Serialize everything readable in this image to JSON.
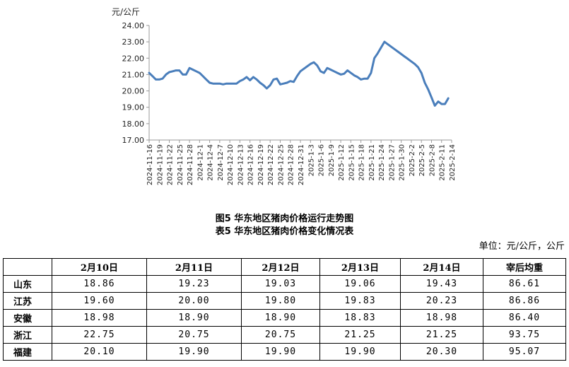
{
  "chart_data": {
    "type": "line",
    "unit": "元/公斤",
    "ylim": [
      17.0,
      24.0
    ],
    "yticks": [
      "24.00",
      "23.00",
      "22.00",
      "21.00",
      "20.00",
      "19.00",
      "18.00",
      "17.00"
    ],
    "x_tick_labels": [
      "2024-11-16",
      "2024-11-19",
      "2024-11-22",
      "2024-11-25",
      "2024-11-28",
      "2024-12-1",
      "2024-12-4",
      "2024-12-7",
      "2024-12-10",
      "2024-12-13",
      "2024-12-16",
      "2024-12-19",
      "2024-12-22",
      "2024-12-25",
      "2024-12-28",
      "2024-12-31",
      "2025-1-3",
      "2025-1-6",
      "2025-1-9",
      "2025-1-12",
      "2025-1-15",
      "2025-1-18",
      "2025-1-21",
      "2025-1-24",
      "2025-1-27",
      "2025-1-30",
      "2025-2-2",
      "2025-2-5",
      "2025-2-8",
      "2025-2-11",
      "2025-2-14"
    ],
    "series": [
      {
        "color": "#4a7ebb",
        "points": [
          [
            "2024-11-16",
            21.1
          ],
          [
            "2024-11-17",
            20.9
          ],
          [
            "2024-11-18",
            20.7
          ],
          [
            "2024-11-19",
            20.7
          ],
          [
            "2024-11-20",
            20.75
          ],
          [
            "2024-11-21",
            21.0
          ],
          [
            "2024-11-22",
            21.15
          ],
          [
            "2024-11-23",
            21.2
          ],
          [
            "2024-11-24",
            21.25
          ],
          [
            "2024-11-25",
            21.25
          ],
          [
            "2024-11-26",
            21.0
          ],
          [
            "2024-11-27",
            21.0
          ],
          [
            "2024-11-28",
            21.4
          ],
          [
            "2024-11-29",
            21.3
          ],
          [
            "2024-11-30",
            21.2
          ],
          [
            "2024-12-1",
            21.1
          ],
          [
            "2024-12-2",
            20.9
          ],
          [
            "2024-12-3",
            20.7
          ],
          [
            "2024-12-4",
            20.5
          ],
          [
            "2024-12-5",
            20.45
          ],
          [
            "2024-12-6",
            20.45
          ],
          [
            "2024-12-7",
            20.45
          ],
          [
            "2024-12-8",
            20.4
          ],
          [
            "2024-12-9",
            20.45
          ],
          [
            "2024-12-10",
            20.45
          ],
          [
            "2024-12-11",
            20.45
          ],
          [
            "2024-12-12",
            20.45
          ],
          [
            "2024-12-13",
            20.6
          ],
          [
            "2024-12-14",
            20.7
          ],
          [
            "2024-12-15",
            20.85
          ],
          [
            "2024-12-16",
            20.65
          ],
          [
            "2024-12-17",
            20.85
          ],
          [
            "2024-12-18",
            20.7
          ],
          [
            "2024-12-19",
            20.5
          ],
          [
            "2024-12-20",
            20.35
          ],
          [
            "2024-12-21",
            20.15
          ],
          [
            "2024-12-22",
            20.35
          ],
          [
            "2024-12-23",
            20.7
          ],
          [
            "2024-12-24",
            20.75
          ],
          [
            "2024-12-25",
            20.4
          ],
          [
            "2024-12-26",
            20.45
          ],
          [
            "2024-12-27",
            20.5
          ],
          [
            "2024-12-28",
            20.6
          ],
          [
            "2024-12-29",
            20.55
          ],
          [
            "2024-12-30",
            20.9
          ],
          [
            "2024-12-31",
            21.2
          ],
          [
            "2025-1-1",
            21.35
          ],
          [
            "2025-1-2",
            21.5
          ],
          [
            "2025-1-3",
            21.65
          ],
          [
            "2025-1-4",
            21.75
          ],
          [
            "2025-1-5",
            21.55
          ],
          [
            "2025-1-6",
            21.2
          ],
          [
            "2025-1-7",
            21.1
          ],
          [
            "2025-1-8",
            21.4
          ],
          [
            "2025-1-9",
            21.3
          ],
          [
            "2025-1-10",
            21.2
          ],
          [
            "2025-1-11",
            21.1
          ],
          [
            "2025-1-12",
            21.0
          ],
          [
            "2025-1-13",
            21.05
          ],
          [
            "2025-1-14",
            21.25
          ],
          [
            "2025-1-15",
            21.1
          ],
          [
            "2025-1-16",
            20.95
          ],
          [
            "2025-1-17",
            20.85
          ],
          [
            "2025-1-18",
            20.7
          ],
          [
            "2025-1-19",
            20.75
          ],
          [
            "2025-1-20",
            20.75
          ],
          [
            "2025-1-21",
            21.1
          ],
          [
            "2025-1-22",
            22.0
          ],
          [
            "2025-1-23",
            22.3
          ],
          [
            "2025-1-24",
            22.65
          ],
          [
            "2025-1-25",
            23.0
          ],
          [
            "2025-1-26",
            22.85
          ],
          [
            "2025-1-27",
            22.7
          ],
          [
            "2025-1-28",
            22.55
          ],
          [
            "2025-1-29",
            22.4
          ],
          [
            "2025-1-30",
            22.25
          ],
          [
            "2025-1-31",
            22.1
          ],
          [
            "2025-2-1",
            21.95
          ],
          [
            "2025-2-2",
            21.8
          ],
          [
            "2025-2-3",
            21.65
          ],
          [
            "2025-2-4",
            21.45
          ],
          [
            "2025-2-5",
            21.1
          ],
          [
            "2025-2-6",
            20.5
          ],
          [
            "2025-2-7",
            20.1
          ],
          [
            "2025-2-8",
            19.6
          ],
          [
            "2025-2-9",
            19.1
          ],
          [
            "2025-2-10",
            19.35
          ],
          [
            "2025-2-11",
            19.2
          ],
          [
            "2025-2-12",
            19.2
          ],
          [
            "2025-2-13",
            19.55
          ]
        ]
      }
    ]
  },
  "figure_caption": "图5  华东地区猪肉价格运行走势图",
  "table_caption": "表5  华东地区猪肉价格变化情况表",
  "unit_note": "单位：元/公斤，公斤",
  "table": {
    "headers": [
      "",
      "2月10日",
      "2月11日",
      "2月12日",
      "2月13日",
      "2月14日",
      "宰后均重"
    ],
    "rows": [
      {
        "province": "山东",
        "values": [
          "18.86",
          "19.23",
          "19.03",
          "19.06",
          "19.43",
          "86.61"
        ]
      },
      {
        "province": "江苏",
        "values": [
          "19.60",
          "20.00",
          "19.80",
          "19.83",
          "20.23",
          "86.86"
        ]
      },
      {
        "province": "安徽",
        "values": [
          "18.98",
          "18.90",
          "18.90",
          "18.83",
          "18.98",
          "86.40"
        ]
      },
      {
        "province": "浙江",
        "values": [
          "22.75",
          "20.75",
          "20.75",
          "21.25",
          "21.25",
          "93.75"
        ]
      },
      {
        "province": "福建",
        "values": [
          "20.10",
          "19.90",
          "19.90",
          "19.90",
          "20.30",
          "95.07"
        ]
      }
    ]
  }
}
